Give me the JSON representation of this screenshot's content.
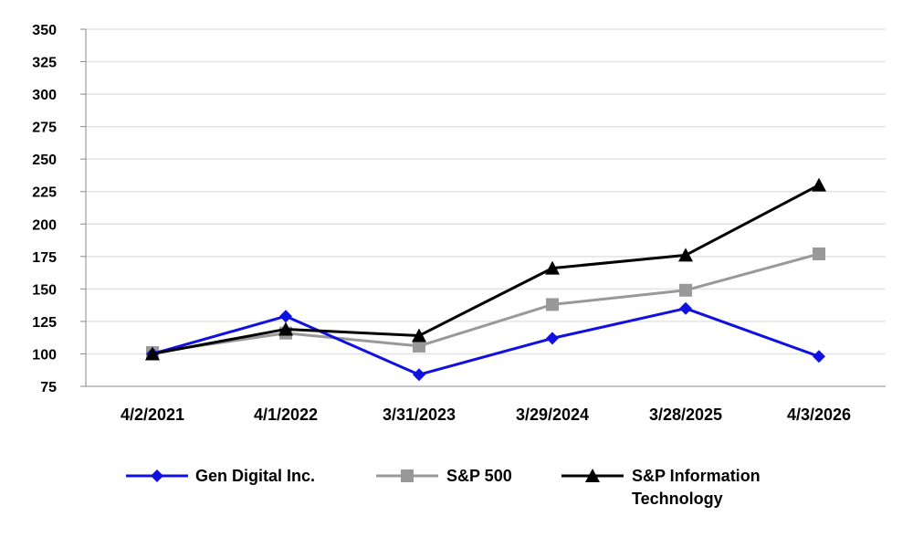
{
  "chart_data": {
    "type": "line",
    "title": "",
    "xlabel": "",
    "ylabel": "",
    "categories": [
      "4/2/2021",
      "4/1/2022",
      "3/31/2023",
      "3/29/2024",
      "3/28/2025",
      "4/3/2026"
    ],
    "yticks": [
      "75",
      "100",
      "125",
      "150",
      "175",
      "200",
      "225",
      "250",
      "275",
      "300",
      "325",
      "350"
    ],
    "ylim": [
      75,
      350
    ],
    "grid": true,
    "legend_position": "bottom",
    "series": [
      {
        "name": "Gen Digital Inc.",
        "values": [
          100,
          129,
          84,
          112,
          135,
          98
        ],
        "color": "#1010e0",
        "marker": "diamond"
      },
      {
        "name": "S&P 500",
        "values": [
          101,
          116,
          106,
          138,
          149,
          177
        ],
        "color": "#999999",
        "marker": "square"
      },
      {
        "name": "S&P Information Technology",
        "values": [
          100,
          119,
          114,
          166,
          176,
          230
        ],
        "color": "#000000",
        "marker": "triangle"
      }
    ]
  }
}
